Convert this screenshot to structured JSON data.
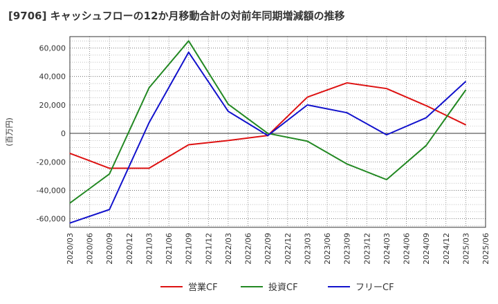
{
  "chart_data": {
    "type": "line",
    "title": "[9706]  キャッシュフローの12か月移動合計の対前年同期増減額の推移",
    "ylabel": "(百万円)",
    "xlabel": "",
    "x_ticks": [
      "2020/03",
      "2020/06",
      "2020/09",
      "2020/12",
      "2021/03",
      "2021/06",
      "2021/09",
      "2021/12",
      "2022/03",
      "2022/06",
      "2022/09",
      "2022/12",
      "2023/03",
      "2023/06",
      "2023/09",
      "2023/12",
      "2024/03",
      "2024/06",
      "2024/09",
      "2024/12",
      "2025/03",
      "2025/06"
    ],
    "y_ticks": [
      -60000,
      -40000,
      -20000,
      0,
      20000,
      40000,
      60000
    ],
    "y_tick_labels": [
      "-60,000",
      "-40,000",
      "-20,000",
      "0",
      "20,000",
      "40,000",
      "60,000"
    ],
    "ylim": [
      -66000,
      68000
    ],
    "grid": true,
    "legend_position": "bottom",
    "series": [
      {
        "name": "営業CF",
        "color": "#dd1111",
        "x": [
          "2020/03",
          "2020/09",
          "2021/03",
          "2021/09",
          "2022/03",
          "2022/09",
          "2023/03",
          "2023/09",
          "2024/03",
          "2024/09",
          "2025/03"
        ],
        "values": [
          -14000,
          -24500,
          -24500,
          -8000,
          -5000,
          -1500,
          25500,
          35500,
          31500,
          19500,
          6000
        ]
      },
      {
        "name": "投資CF",
        "color": "#228822",
        "x": [
          "2020/03",
          "2020/09",
          "2021/03",
          "2021/09",
          "2022/03",
          "2022/09",
          "2023/03",
          "2023/09",
          "2024/03",
          "2024/09",
          "2025/03"
        ],
        "values": [
          -49000,
          -28500,
          32000,
          65000,
          20500,
          0,
          -5500,
          -21500,
          -32500,
          -8500,
          30500
        ]
      },
      {
        "name": "フリーCF",
        "color": "#1111cc",
        "x": [
          "2020/03",
          "2020/09",
          "2021/03",
          "2021/09",
          "2022/03",
          "2022/09",
          "2023/03",
          "2023/09",
          "2024/03",
          "2024/09",
          "2025/03"
        ],
        "values": [
          -63000,
          -53500,
          7500,
          57000,
          15500,
          -1500,
          20000,
          14500,
          -1000,
          11000,
          36500
        ]
      }
    ]
  }
}
